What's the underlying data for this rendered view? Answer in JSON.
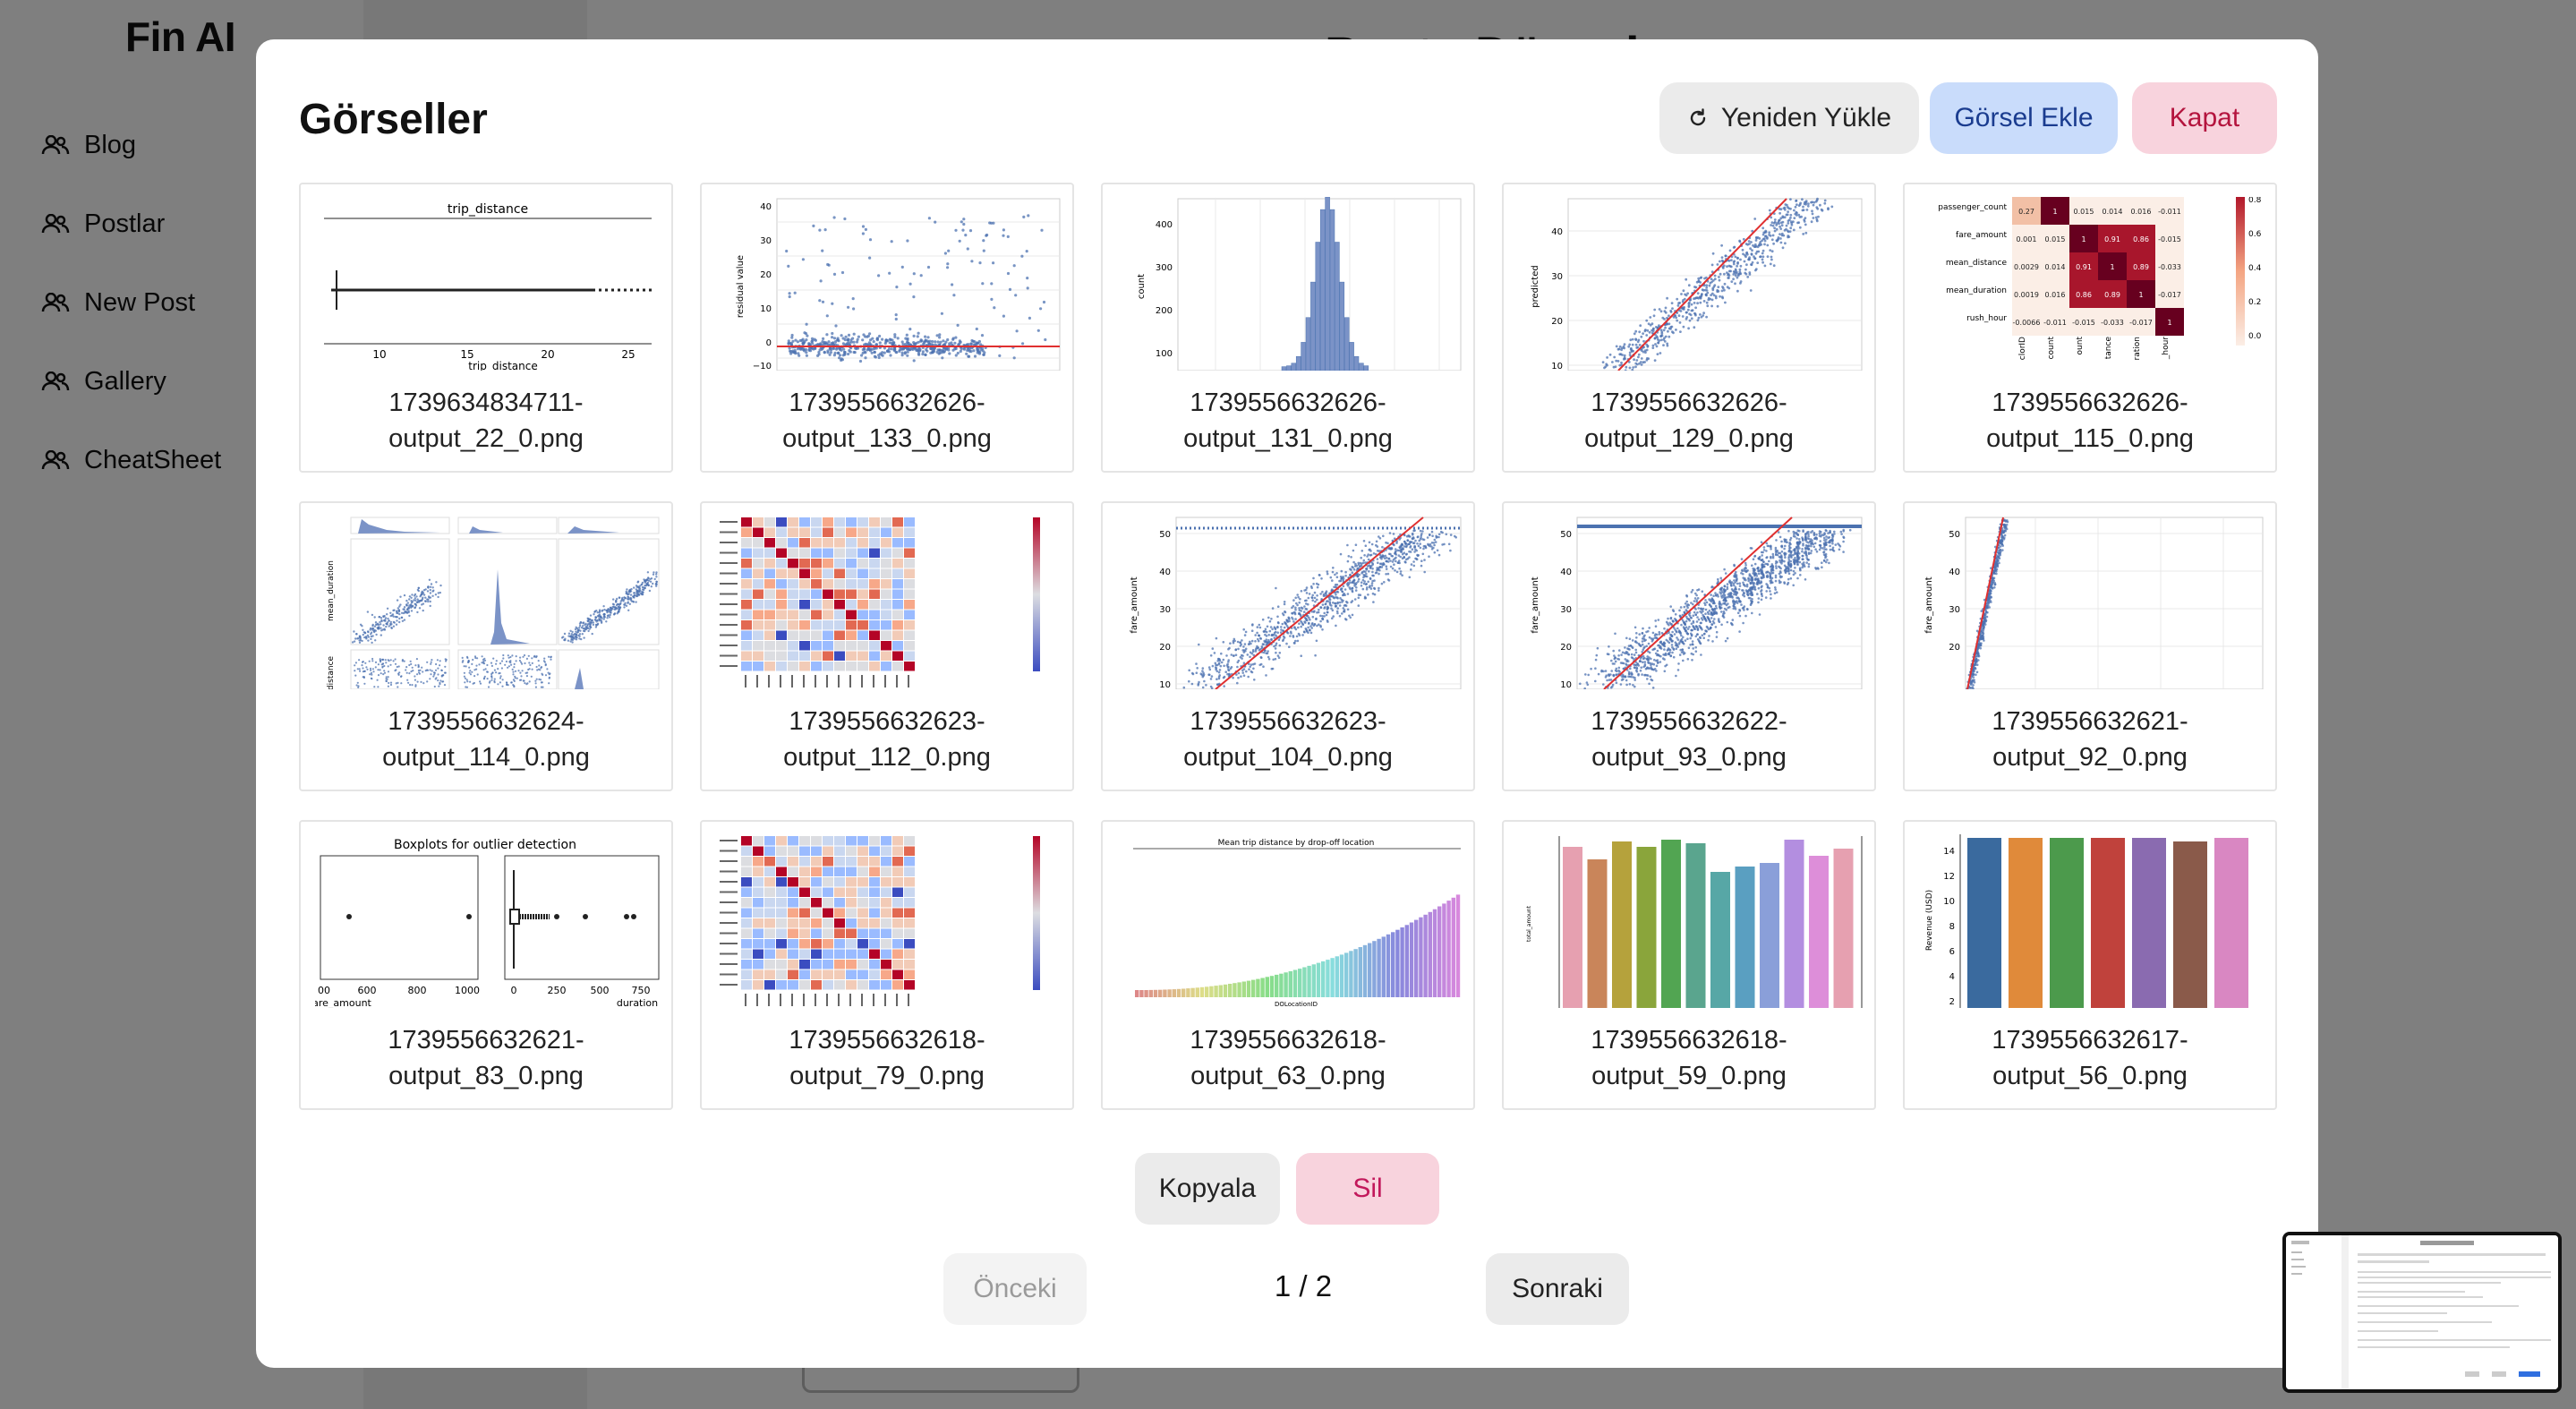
{
  "app": {
    "brand": "Fin AI",
    "nav": [
      {
        "label": "Blog",
        "icon": "users-icon"
      },
      {
        "label": "Postlar",
        "icon": "users-icon"
      },
      {
        "label": "New Post",
        "icon": "users-icon"
      },
      {
        "label": "Gallery",
        "icon": "users-icon"
      },
      {
        "label": "CheatSheet",
        "icon": "users-icon"
      }
    ],
    "page_title": "Posta Düzenle"
  },
  "modal": {
    "title": "Görseller",
    "reload_label": "Yeniden Yükle",
    "add_label": "Görsel Ekle",
    "close_label": "Kapat",
    "copy_label": "Kopyala",
    "delete_label": "Sil",
    "prev_label": "Önceki",
    "next_label": "Sonraki",
    "page_indicator": "1 / 2",
    "images": [
      {
        "line1": "1739634834711-",
        "line2": "output_22_0.png",
        "thumb": "boxplot-trip-distance"
      },
      {
        "line1": "1739556632626-",
        "line2": "output_133_0.png",
        "thumb": "residual-scatter"
      },
      {
        "line1": "1739556632626-",
        "line2": "output_131_0.png",
        "thumb": "histogram"
      },
      {
        "line1": "1739556632626-",
        "line2": "output_129_0.png",
        "thumb": "predicted-scatter"
      },
      {
        "line1": "1739556632626-",
        "line2": "output_115_0.png",
        "thumb": "correlation-heatmap"
      },
      {
        "line1": "1739556632624-",
        "line2": "output_114_0.png",
        "thumb": "pairplot"
      },
      {
        "line1": "1739556632623-",
        "line2": "output_112_0.png",
        "thumb": "heatmap"
      },
      {
        "line1": "1739556632623-",
        "line2": "output_104_0.png",
        "thumb": "fare-scatter"
      },
      {
        "line1": "1739556632622-",
        "line2": "output_93_0.png",
        "thumb": "fare-scatter"
      },
      {
        "line1": "1739556632621-",
        "line2": "output_92_0.png",
        "thumb": "fare-scatter-narrow"
      },
      {
        "line1": "1739556632621-",
        "line2": "output_83_0.png",
        "thumb": "boxplots-outliers"
      },
      {
        "line1": "1739556632618-",
        "line2": "output_79_0.png",
        "thumb": "heatmap"
      },
      {
        "line1": "1739556632618-",
        "line2": "output_63_0.png",
        "thumb": "mean-trip-distance-bars"
      },
      {
        "line1": "1739556632618-",
        "line2": "output_59_0.png",
        "thumb": "colored-bars"
      },
      {
        "line1": "1739556632617-",
        "line2": "output_56_0.png",
        "thumb": "revenue-bars"
      }
    ]
  },
  "thumb_text": {
    "trip_title": "trip_distance",
    "trip_ticks": [
      "10",
      "15",
      "20",
      "25"
    ],
    "trip_xlabel": "trip_distance",
    "residual_ylabel": "residual value",
    "residual_ticks": [
      "40",
      "30",
      "20",
      "10",
      "0",
      "−10"
    ],
    "hist_ylabel": "count",
    "hist_ticks": [
      "400",
      "300",
      "200",
      "100"
    ],
    "pred_ylabel": "predicted",
    "pred_ticks": [
      "40",
      "30",
      "20",
      "10"
    ],
    "corr_rows": [
      "passenger_count",
      "fare_amount",
      "mean_distance",
      "mean_duration",
      "rush_hour"
    ],
    "corr_values": [
      [
        "0.27",
        "1",
        "0.015",
        "0.014",
        "0.016",
        "-0.011"
      ],
      [
        "0.001",
        "0.015",
        "1",
        "0.91",
        "0.86",
        "-0.015"
      ],
      [
        "0.0029",
        "0.014",
        "0.91",
        "1",
        "0.89",
        "-0.033"
      ],
      [
        "0.0019",
        "0.016",
        "0.86",
        "0.89",
        "1",
        "-0.017"
      ],
      [
        "-0.0066",
        "-0.011",
        "-0.015",
        "-0.033",
        "-0.017",
        "1"
      ]
    ],
    "corr_cols": [
      "clorID",
      "count",
      "ount",
      "tance",
      "ration",
      "_hour"
    ],
    "corr_scale": [
      "0.8",
      "0.6",
      "0.4",
      "0.2",
      "0.0"
    ],
    "pair_ylabels": [
      "mean_duration",
      "distance"
    ],
    "fare_ylabel": "fare_amount",
    "fare_ticks": [
      "50",
      "40",
      "30",
      "20",
      "10"
    ],
    "boxplots_title": "Boxplots for outlier detection",
    "boxplots_left_ticks": [
      "00",
      "600",
      "800",
      "1000"
    ],
    "boxplots_left_label": "are_amount",
    "boxplots_right_ticks": [
      "0",
      "250",
      "500",
      "750"
    ],
    "boxplots_right_label": "duration",
    "mean_trip_title": "Mean trip distance by drop-off location",
    "mean_trip_xlabel": "DOLocationID",
    "revenue_ylabel": "Revenue (USD)",
    "revenue_ticks": [
      "14",
      "12",
      "10",
      "8",
      "6",
      "4",
      "2"
    ],
    "colored_ylabel": "total_amount"
  },
  "colors": {
    "scatter_blue": "#4c72b0",
    "trend_red": "#e03030",
    "add_bg": "#c9dcfb",
    "close_bg": "#f8d3dd"
  }
}
